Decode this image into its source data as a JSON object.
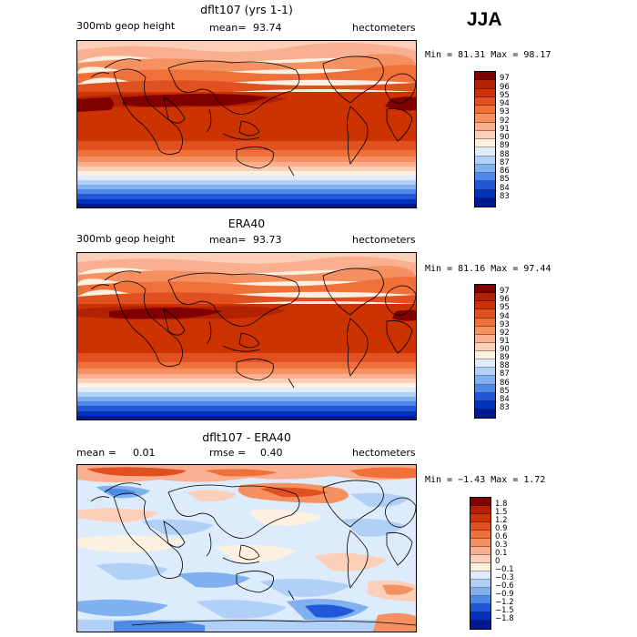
{
  "season": "JJA",
  "panels": [
    {
      "title": "dflt107 (yrs 1-1)",
      "left_label": "300mb geop height",
      "mean_label": "mean=",
      "mean_value": "93.74",
      "units": "hectometers",
      "range_text": "Min =  81.31 Max =  98.17",
      "levels": [
        "97",
        "96",
        "95",
        "94",
        "93",
        "92",
        "91",
        "90",
        "89",
        "88",
        "87",
        "86",
        "85",
        "84",
        "83"
      ],
      "colors": [
        "#800000",
        "#b22100",
        "#cc3300",
        "#e05020",
        "#f0703a",
        "#f59060",
        "#fab090",
        "#fcd0b8",
        "#fdf0e0",
        "#dcecfc",
        "#b0d0f8",
        "#80b0f0",
        "#5088e8",
        "#2058d8",
        "#0030c0",
        "#001890"
      ]
    },
    {
      "title": "ERA40",
      "left_label": "300mb geop height",
      "mean_label": "mean=",
      "mean_value": "93.73",
      "units": "hectometers",
      "range_text": "Min =  81.16 Max =  97.44",
      "levels": [
        "97",
        "96",
        "95",
        "94",
        "93",
        "92",
        "91",
        "90",
        "89",
        "88",
        "87",
        "86",
        "85",
        "84",
        "83"
      ],
      "colors": [
        "#800000",
        "#b22100",
        "#cc3300",
        "#e05020",
        "#f0703a",
        "#f59060",
        "#fab090",
        "#fcd0b8",
        "#fdf0e0",
        "#dcecfc",
        "#b0d0f8",
        "#80b0f0",
        "#5088e8",
        "#2058d8",
        "#0030c0",
        "#001890"
      ]
    },
    {
      "title": "dflt107 - ERA40",
      "left_label": "mean =",
      "left_value": "0.01",
      "mean_label": "rmse =",
      "mean_value": "0.40",
      "units": "hectometers",
      "range_text": "Min =  −1.43 Max =    1.72",
      "levels": [
        "1.8",
        "1.5",
        "1.2",
        "0.9",
        "0.6",
        "0.3",
        "0.1",
        "0",
        "−0.1",
        "−0.3",
        "−0.6",
        "−0.9",
        "−1.2",
        "−1.5",
        "−1.8"
      ],
      "colors": [
        "#800000",
        "#b22100",
        "#cc3300",
        "#e05020",
        "#f0703a",
        "#f59060",
        "#fab090",
        "#fcd0b8",
        "#fdf0e0",
        "#dcecfc",
        "#b0d0f8",
        "#80b0f0",
        "#5088e8",
        "#2058d8",
        "#0030c0",
        "#001890"
      ]
    }
  ]
}
